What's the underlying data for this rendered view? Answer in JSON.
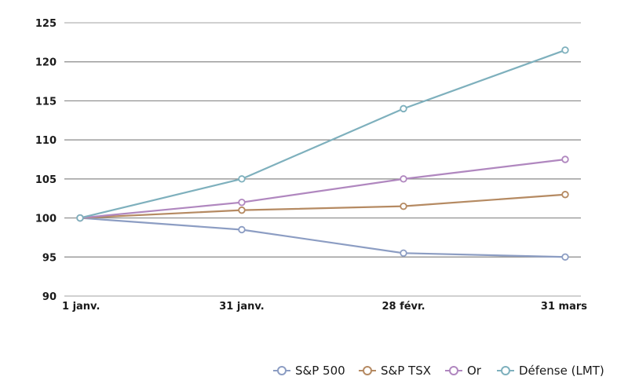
{
  "chart_data": {
    "type": "line",
    "categories": [
      "1 janv.",
      "31 janv.",
      "28 févr.",
      "31 mars"
    ],
    "ylim": [
      90,
      125
    ],
    "yticks": [
      90,
      95,
      100,
      105,
      110,
      115,
      120,
      125
    ],
    "grid": true,
    "legend_position": "bottom-right",
    "series": [
      {
        "name": "S&P 500",
        "color": "#8c9dc3",
        "values": [
          100,
          98.5,
          95.5,
          95
        ]
      },
      {
        "name": "S&P TSX",
        "color": "#b58a62",
        "values": [
          100,
          101,
          101.5,
          103
        ]
      },
      {
        "name": "Or",
        "color": "#b087bf",
        "values": [
          100,
          102,
          105,
          107.5
        ]
      },
      {
        "name": "Défense (LMT)",
        "color": "#7eb0bd",
        "values": [
          100,
          105,
          114,
          121.5
        ]
      }
    ]
  }
}
